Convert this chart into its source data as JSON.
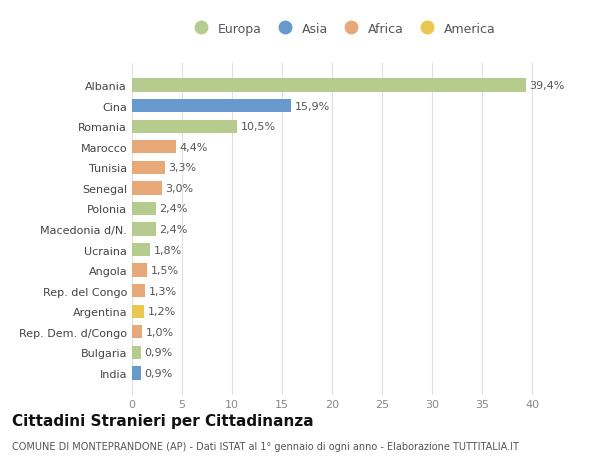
{
  "categories": [
    "Albania",
    "Cina",
    "Romania",
    "Marocco",
    "Tunisia",
    "Senegal",
    "Polonia",
    "Macedonia d/N.",
    "Ucraina",
    "Angola",
    "Rep. del Congo",
    "Argentina",
    "Rep. Dem. d/Congo",
    "Bulgaria",
    "India"
  ],
  "values": [
    39.4,
    15.9,
    10.5,
    4.4,
    3.3,
    3.0,
    2.4,
    2.4,
    1.8,
    1.5,
    1.3,
    1.2,
    1.0,
    0.9,
    0.9
  ],
  "labels": [
    "39,4%",
    "15,9%",
    "10,5%",
    "4,4%",
    "3,3%",
    "3,0%",
    "2,4%",
    "2,4%",
    "1,8%",
    "1,5%",
    "1,3%",
    "1,2%",
    "1,0%",
    "0,9%",
    "0,9%"
  ],
  "colors": [
    "#b5cc8e",
    "#6699cc",
    "#b5cc8e",
    "#e8a878",
    "#e8a878",
    "#e8a878",
    "#b5cc8e",
    "#b5cc8e",
    "#b5cc8e",
    "#e8a878",
    "#e8a878",
    "#e8c850",
    "#e8a878",
    "#b5cc8e",
    "#6699cc"
  ],
  "continent_colors": {
    "Europa": "#b5cc8e",
    "Asia": "#6699cc",
    "Africa": "#e8a878",
    "America": "#e8c850"
  },
  "legend_order": [
    "Europa",
    "Asia",
    "Africa",
    "America"
  ],
  "title": "Cittadini Stranieri per Cittadinanza",
  "subtitle": "COMUNE DI MONTEPRANDONE (AP) - Dati ISTAT al 1° gennaio di ogni anno - Elaborazione TUTTITALIA.IT",
  "xlim": [
    0,
    42
  ],
  "xticks": [
    0,
    5,
    10,
    15,
    20,
    25,
    30,
    35,
    40
  ],
  "bg_color": "#ffffff",
  "grid_color": "#e0e0e0",
  "bar_height": 0.65,
  "label_fontsize": 8.0,
  "tick_fontsize": 8.0,
  "title_fontsize": 11,
  "subtitle_fontsize": 7.0
}
